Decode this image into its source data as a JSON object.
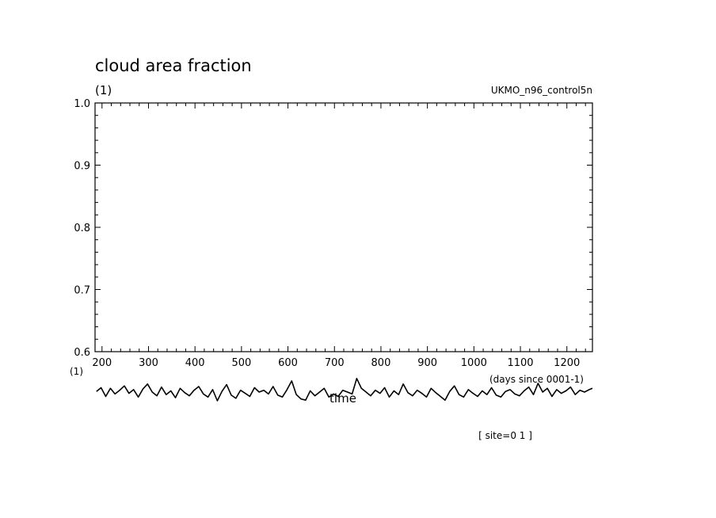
{
  "chart_data": {
    "type": "line",
    "title": "cloud area fraction",
    "units_label": "(1)",
    "dataset_label": "UKMO_n96_control5n",
    "xlabel": "time",
    "xunits": "(days since 0001-1)",
    "x_units_label_left": "(1)",
    "footer": "[ site=0 1 ]",
    "xlim": [
      185,
      1255
    ],
    "ylim": [
      0.6,
      1.0
    ],
    "x_ticks": [
      200,
      300,
      400,
      500,
      600,
      700,
      800,
      900,
      1000,
      1100,
      1200
    ],
    "y_ticks": [
      "0.6",
      "0.7",
      "0.8",
      "0.9",
      "1.0"
    ],
    "grid": false,
    "series": [
      {
        "x": [
          188,
          198,
          208,
          218,
          228,
          238,
          248,
          258,
          268,
          278,
          288,
          298,
          308,
          318,
          328,
          338,
          348,
          358,
          368,
          378,
          388,
          398,
          408,
          418,
          428,
          438,
          448,
          458,
          468,
          478,
          488,
          498,
          508,
          518,
          528,
          538,
          548,
          558,
          568,
          578,
          588,
          598,
          608,
          618,
          628,
          638,
          648,
          658,
          668,
          678,
          688,
          698,
          708,
          718,
          728,
          738,
          748,
          758,
          768,
          778,
          788,
          798,
          808,
          818,
          828,
          838,
          848,
          858,
          868,
          878,
          888,
          898,
          908,
          918,
          928,
          938,
          948,
          958,
          968,
          978,
          988,
          998,
          1008,
          1018,
          1028,
          1038,
          1048,
          1058,
          1068,
          1078,
          1088,
          1098,
          1108,
          1118,
          1128,
          1138,
          1148,
          1158,
          1168,
          1178,
          1188,
          1198,
          1208,
          1218,
          1228,
          1238,
          1248,
          1255
        ],
        "values": [
          0.536,
          0.542,
          0.528,
          0.541,
          0.532,
          0.538,
          0.545,
          0.533,
          0.539,
          0.527,
          0.54,
          0.548,
          0.535,
          0.529,
          0.543,
          0.531,
          0.537,
          0.526,
          0.541,
          0.534,
          0.529,
          0.538,
          0.544,
          0.532,
          0.527,
          0.539,
          0.521,
          0.536,
          0.547,
          0.53,
          0.525,
          0.538,
          0.533,
          0.528,
          0.542,
          0.535,
          0.538,
          0.532,
          0.544,
          0.53,
          0.527,
          0.539,
          0.553,
          0.531,
          0.524,
          0.522,
          0.537,
          0.529,
          0.535,
          0.541,
          0.527,
          0.532,
          0.528,
          0.538,
          0.535,
          0.532,
          0.557,
          0.541,
          0.535,
          0.529,
          0.538,
          0.533,
          0.542,
          0.527,
          0.537,
          0.531,
          0.548,
          0.534,
          0.529,
          0.538,
          0.533,
          0.527,
          0.541,
          0.534,
          0.528,
          0.522,
          0.536,
          0.545,
          0.531,
          0.527,
          0.539,
          0.533,
          0.528,
          0.537,
          0.531,
          0.542,
          0.53,
          0.527,
          0.536,
          0.539,
          0.532,
          0.529,
          0.537,
          0.543,
          0.531,
          0.549,
          0.535,
          0.541,
          0.528,
          0.539,
          0.533,
          0.537,
          0.543,
          0.531,
          0.538,
          0.535,
          0.539,
          0.541
        ]
      }
    ]
  }
}
